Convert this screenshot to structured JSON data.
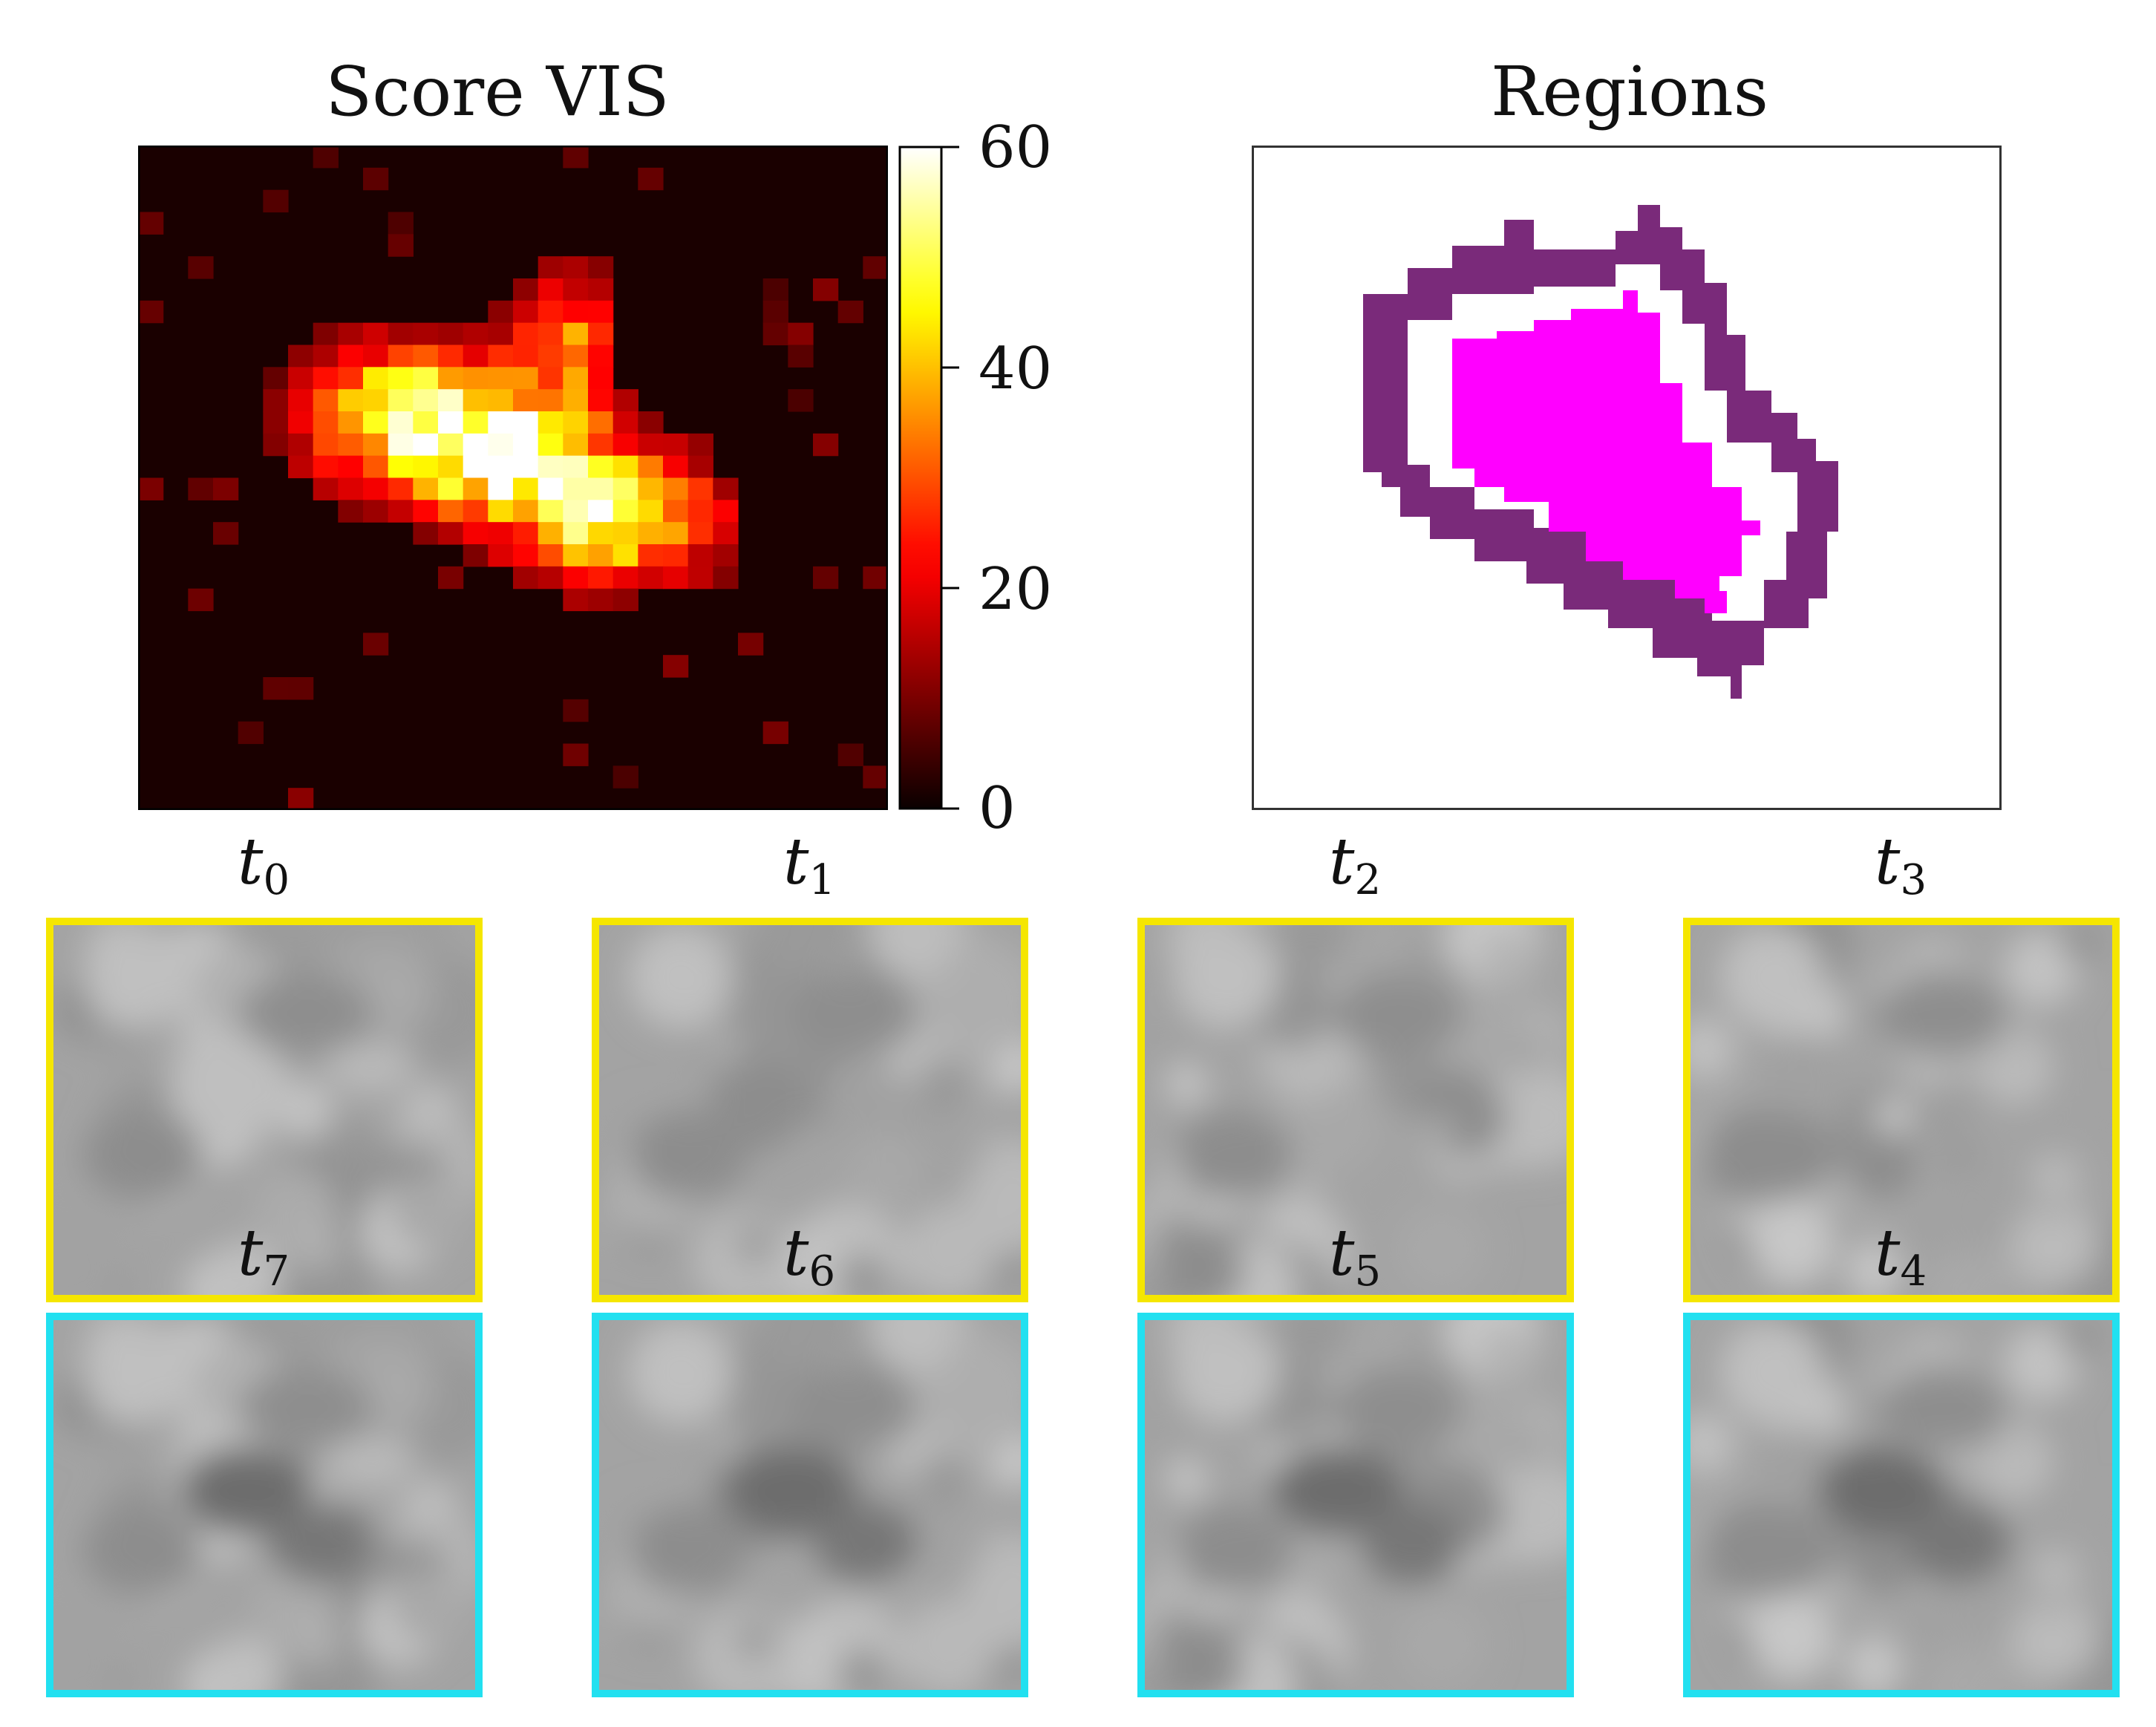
{
  "figure": {
    "score_panel": {
      "title": "Score VIS",
      "colormap": "hot",
      "background": "#1a0000",
      "colorbar": {
        "min": 0,
        "max": 60,
        "ticks": [
          "60",
          "40",
          "20",
          "0"
        ]
      }
    },
    "regions_panel": {
      "title": "Regions",
      "inner_region_color": "#ff00ff",
      "outer_ring_color": "#7a2a7a"
    },
    "time_labels_top": [
      {
        "base": "t",
        "sub": "0"
      },
      {
        "base": "t",
        "sub": "1"
      },
      {
        "base": "t",
        "sub": "2"
      },
      {
        "base": "t",
        "sub": "3"
      }
    ],
    "time_labels_bottom": [
      {
        "base": "t",
        "sub": "7"
      },
      {
        "base": "t",
        "sub": "6"
      },
      {
        "base": "t",
        "sub": "5"
      },
      {
        "base": "t",
        "sub": "4"
      }
    ],
    "top_row_border_color": "#f5e600",
    "bottom_row_border_color": "#22e0f0"
  }
}
